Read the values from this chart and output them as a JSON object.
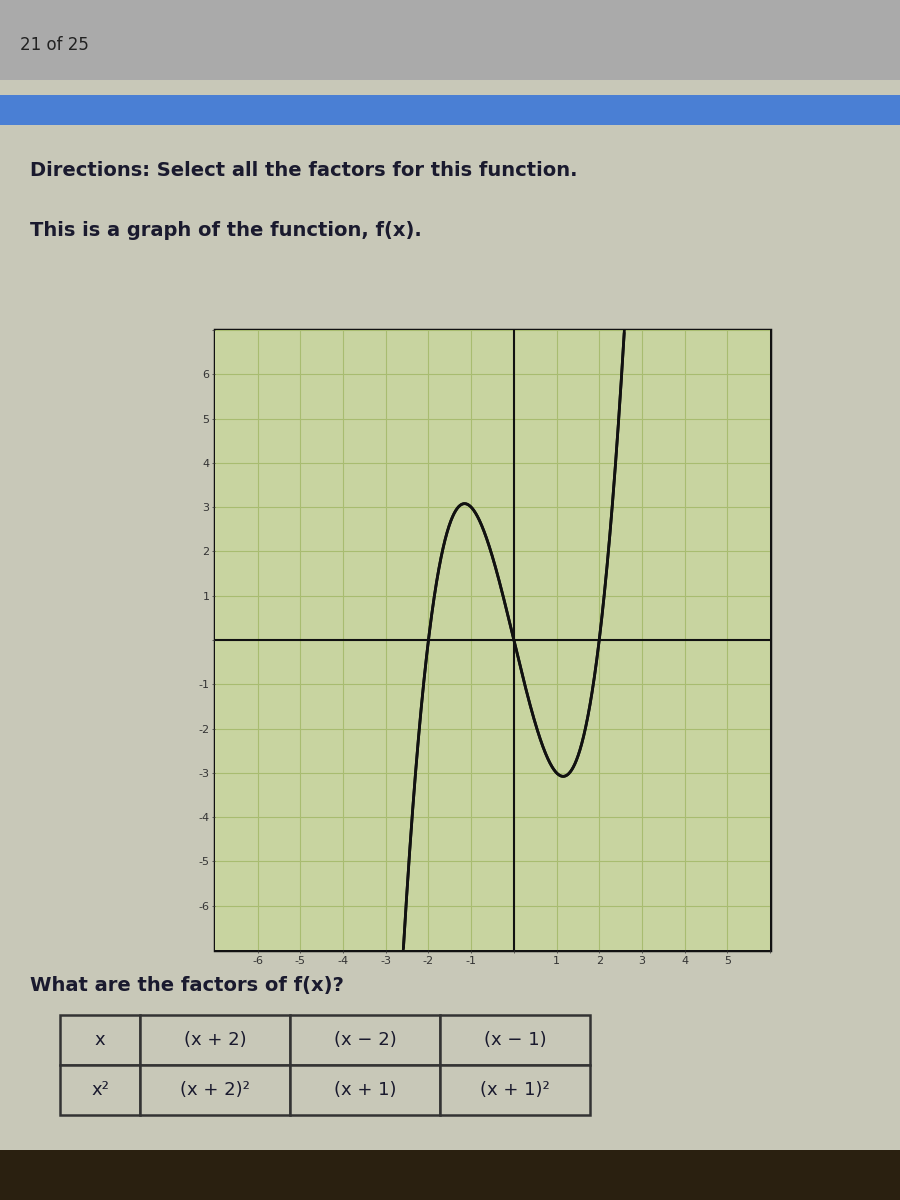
{
  "page_label": "21 of 25",
  "blue_bar_color": "#4a7fd4",
  "page_bg": "#b8b8a8",
  "content_bg": "#c8c8b8",
  "directions_text": "Directions: Select all the factors for this function.",
  "subtitle_text": "This is a graph of the function, f(x).",
  "question_text": "What are the factors of f(x)?",
  "graph_bg": "#c8d4a0",
  "graph_line_color": "#111111",
  "grid_color": "#a8bc70",
  "axis_color": "#111111",
  "xlim": [
    -7,
    6
  ],
  "ylim": [
    -7,
    7
  ],
  "xtick_labels": [
    -6,
    -5,
    -4,
    -3,
    -2,
    -1,
    1,
    2,
    3,
    4,
    5
  ],
  "ytick_labels": [
    -6,
    -5,
    -4,
    -3,
    -2,
    -1,
    1,
    2,
    3,
    4,
    5,
    6
  ],
  "table_cells": [
    [
      "x",
      "(x + 2)",
      "(x − 2)",
      "(x − 1)"
    ],
    [
      "x²",
      "(x + 2)²",
      "(x + 1)",
      "(x + 1)²"
    ]
  ],
  "table_bg": "#c8c8b8",
  "table_border": "#333333",
  "text_color": "#1a1a2e",
  "header_bg": "#888888"
}
